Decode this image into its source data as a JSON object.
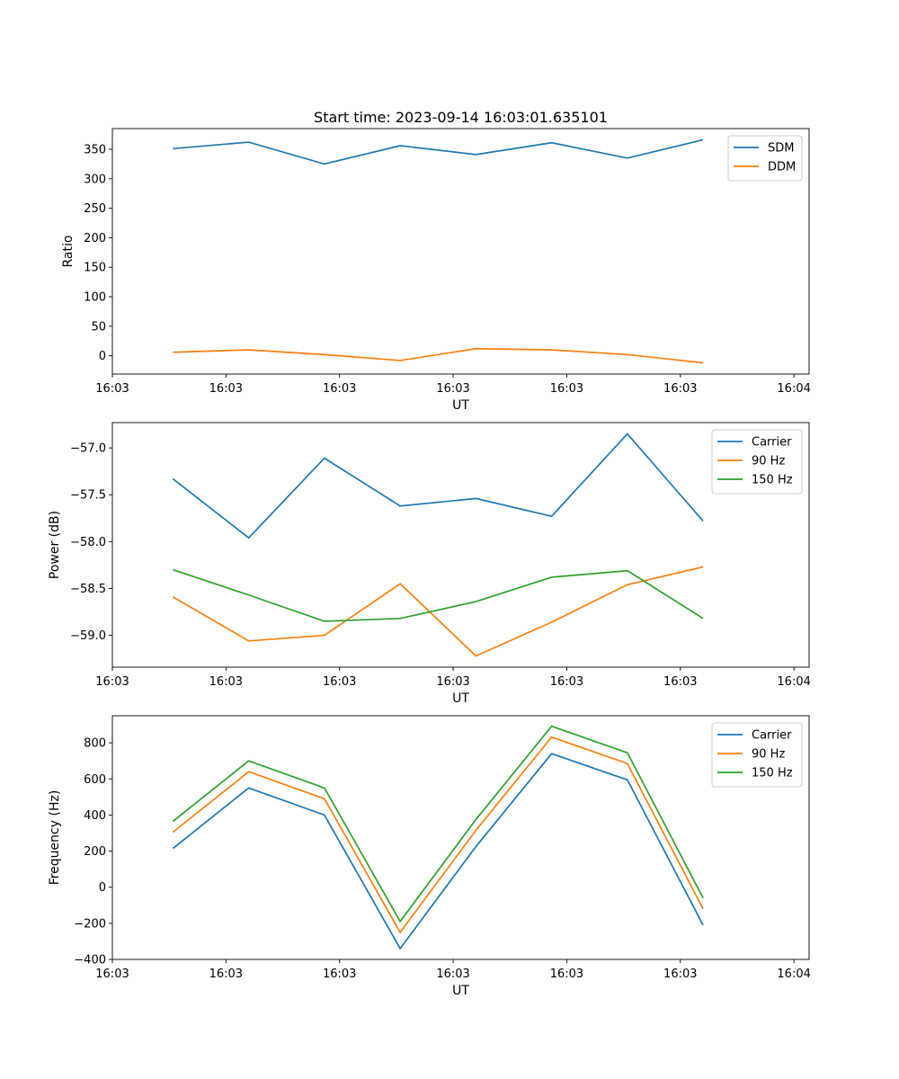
{
  "chart_data": [
    {
      "type": "line",
      "title": "Start time: 2023-09-14 16:03:01.635101",
      "xlabel": "UT",
      "ylabel": "Ratio",
      "ylim": [
        -31,
        385
      ],
      "yticks": [
        0,
        50,
        100,
        150,
        200,
        250,
        300,
        350
      ],
      "xlim": [
        0.2,
        9.4
      ],
      "x": [
        1,
        2,
        3,
        4,
        5,
        6,
        7,
        8
      ],
      "xticks": [
        0.2,
        1.7,
        3.2,
        4.7,
        6.2,
        7.7,
        9.2
      ],
      "xtick_labels": [
        "16:03",
        "16:03",
        "16:03",
        "16:03",
        "16:03",
        "16:03",
        "16:04"
      ],
      "legend_position": "upper right",
      "series": [
        {
          "name": "SDM",
          "color": "#1f77b4",
          "values": [
            351,
            362,
            325,
            356,
            341,
            361,
            335,
            366
          ]
        },
        {
          "name": "DDM",
          "color": "#ff7f0e",
          "values": [
            6,
            10,
            2,
            -8,
            12,
            10,
            2,
            -12
          ]
        }
      ]
    },
    {
      "type": "line",
      "title": "",
      "xlabel": "UT",
      "ylabel": "Power (dB)",
      "ylim": [
        -59.34,
        -56.73
      ],
      "yticks": [
        -59.0,
        -58.5,
        -58.0,
        -57.5,
        -57.0
      ],
      "ytick_labels": [
        "−59.0",
        "−58.5",
        "−58.0",
        "−57.5",
        "−57.0"
      ],
      "xlim": [
        0.2,
        9.4
      ],
      "x": [
        1,
        2,
        3,
        4,
        5,
        6,
        7,
        8
      ],
      "xticks": [
        0.2,
        1.7,
        3.2,
        4.7,
        6.2,
        7.7,
        9.2
      ],
      "xtick_labels": [
        "16:03",
        "16:03",
        "16:03",
        "16:03",
        "16:03",
        "16:03",
        "16:04"
      ],
      "legend_position": "upper right",
      "series": [
        {
          "name": "Carrier",
          "color": "#1f77b4",
          "values": [
            -57.33,
            -57.96,
            -57.11,
            -57.62,
            -57.54,
            -57.73,
            -56.85,
            -57.78
          ]
        },
        {
          "name": "90 Hz",
          "color": "#ff7f0e",
          "values": [
            -58.59,
            -59.06,
            -59.0,
            -58.45,
            -59.22,
            -58.86,
            -58.46,
            -58.27
          ]
        },
        {
          "name": "150 Hz",
          "color": "#2ca02c",
          "values": [
            -58.3,
            -58.57,
            -58.85,
            -58.82,
            -58.64,
            -58.38,
            -58.31,
            -58.82
          ]
        }
      ]
    },
    {
      "type": "line",
      "title": "",
      "xlabel": "UT",
      "ylabel": "Frequency (Hz)",
      "ylim": [
        -400,
        950
      ],
      "yticks": [
        -400,
        -200,
        0,
        200,
        400,
        600,
        800
      ],
      "ytick_labels": [
        "−400",
        "−200",
        "0",
        "200",
        "400",
        "600",
        "800"
      ],
      "xlim": [
        0.2,
        9.4
      ],
      "x": [
        1,
        2,
        3,
        4,
        5,
        6,
        7,
        8
      ],
      "xticks": [
        0.2,
        1.7,
        3.2,
        4.7,
        6.2,
        7.7,
        9.2
      ],
      "xtick_labels": [
        "16:03",
        "16:03",
        "16:03",
        "16:03",
        "16:03",
        "16:03",
        "16:04"
      ],
      "legend_position": "upper right",
      "series": [
        {
          "name": "Carrier",
          "color": "#1f77b4",
          "values": [
            215,
            550,
            400,
            -340,
            225,
            740,
            595,
            -210
          ]
        },
        {
          "name": "90 Hz",
          "color": "#ff7f0e",
          "values": [
            305,
            640,
            490,
            -250,
            315,
            832,
            685,
            -120
          ]
        },
        {
          "name": "150 Hz",
          "color": "#2ca02c",
          "values": [
            365,
            700,
            550,
            -190,
            375,
            892,
            745,
            -60
          ]
        }
      ]
    }
  ]
}
